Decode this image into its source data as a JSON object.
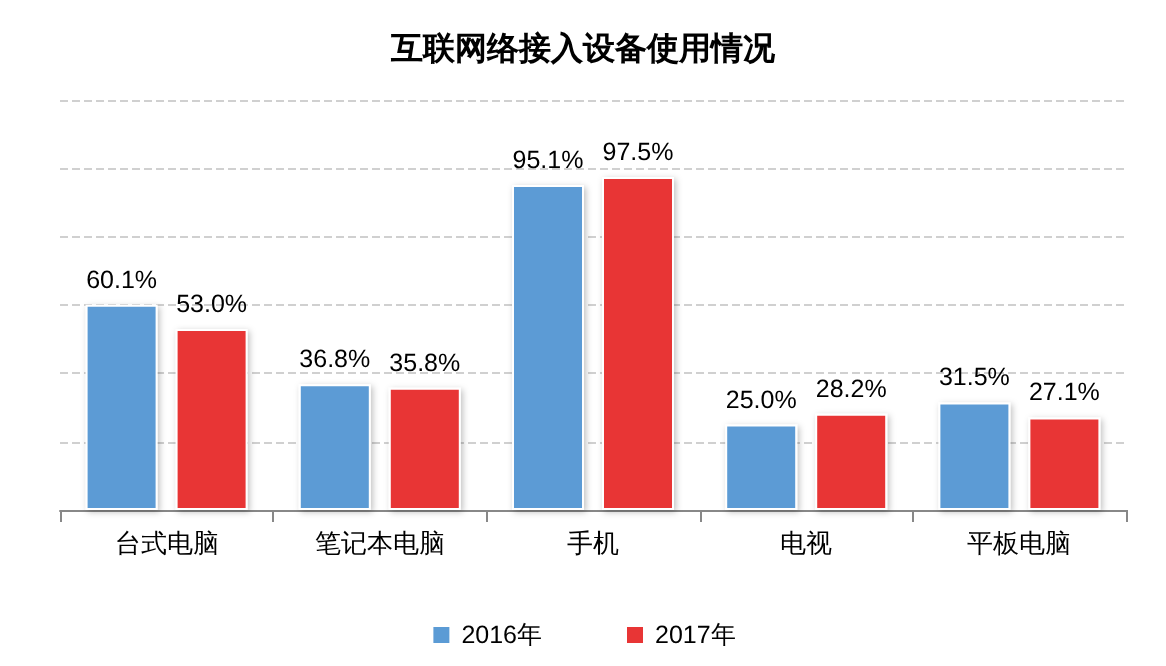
{
  "chart_data": {
    "type": "bar",
    "title": "互联网络接入设备使用情况",
    "categories": [
      "台式电脑",
      "笔记本电脑",
      "手机",
      "电视",
      "平板电脑"
    ],
    "series": [
      {
        "name": "2016年",
        "color": "#5b9bd5",
        "values": [
          60.1,
          36.8,
          95.1,
          25.0,
          31.5
        ],
        "value_labels": [
          "60.1%",
          "36.8%",
          "95.1%",
          "25.0%",
          "31.5%"
        ]
      },
      {
        "name": "2017年",
        "color": "#e83535",
        "values": [
          53.0,
          35.8,
          97.5,
          28.2,
          27.1
        ],
        "value_labels": [
          "53.0%",
          "35.8%",
          "97.5%",
          "28.2%",
          "27.1%"
        ]
      }
    ],
    "ylim": [
      0,
      120
    ],
    "yticks": [
      {
        "value": 0,
        "label": null
      },
      {
        "value": 20,
        "label": null
      },
      {
        "value": 40,
        "label": null
      },
      {
        "value": 60,
        "label": null
      },
      {
        "value": 80,
        "label": null
      },
      {
        "value": 100,
        "label": null
      },
      {
        "value": 120,
        "label": null
      }
    ],
    "tick_labels": "x",
    "grid": "y",
    "legend": "bottom"
  }
}
